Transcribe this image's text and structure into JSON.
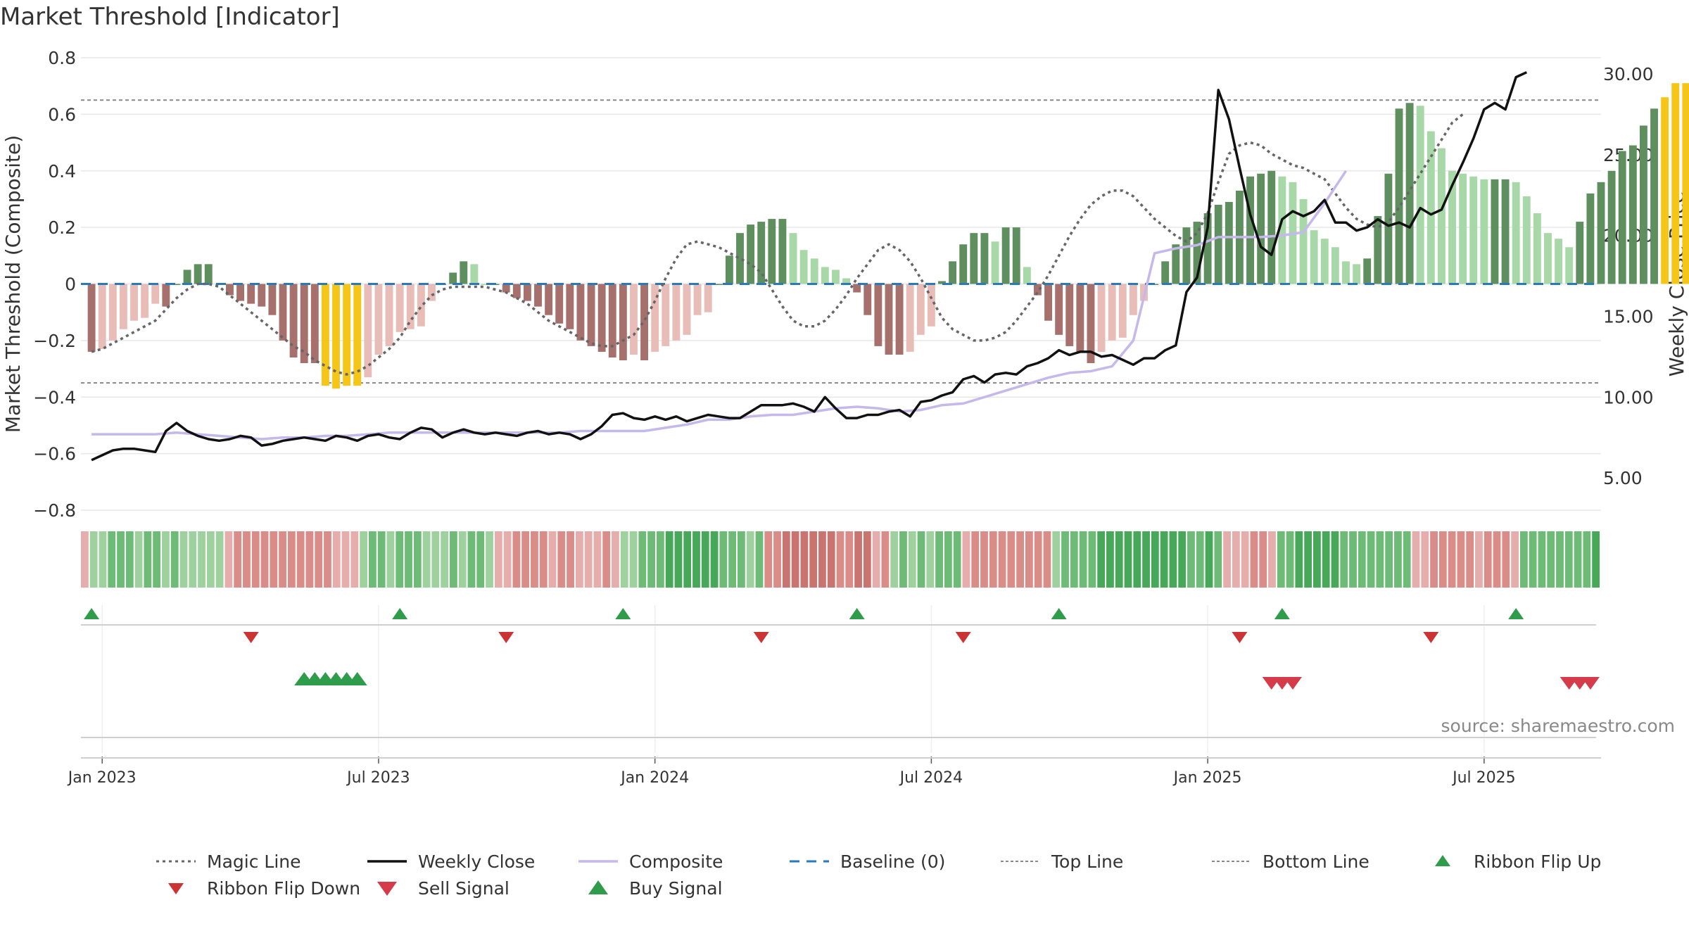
{
  "chart_data": {
    "type": "bar",
    "title": "Market Threshold [Indicator]",
    "ylabel_left": "Market Threshold (Composite)",
    "ylabel_right": "Weekly Close Price",
    "ylim_left": [
      -0.8,
      0.8
    ],
    "ylim_right": [
      3.0,
      31.0
    ],
    "yticks_left": [
      "0.8",
      "0.6",
      "0.4",
      "0.2",
      "0",
      "−0.2",
      "−0.4",
      "−0.6",
      "−0.8"
    ],
    "yticks_left_values": [
      0.8,
      0.6,
      0.4,
      0.2,
      0,
      -0.2,
      -0.4,
      -0.6,
      -0.8
    ],
    "yticks_right": [
      "30.00",
      "25.00",
      "20.00",
      "15.00",
      "10.00",
      "5.00"
    ],
    "yticks_right_values": [
      30,
      25,
      20,
      15,
      10,
      5
    ],
    "xticks": [
      "Jan 2023",
      "Jul 2023",
      "Jan 2024",
      "Jul 2024",
      "Jan 2025",
      "Jul 2025"
    ],
    "xticks_week": [
      1,
      27,
      53,
      79,
      105,
      131
    ],
    "x_start_week": -1,
    "x_end_week": 142,
    "week_note": "week 0 = first week of Jan 2023",
    "top_line": 0.65,
    "bottom_line": -0.35,
    "baseline": 0,
    "bars": [
      -0.24,
      -0.23,
      -0.2,
      -0.16,
      -0.13,
      -0.12,
      -0.07,
      -0.08,
      0,
      0.05,
      0.07,
      0.07,
      0,
      -0.04,
      -0.06,
      -0.07,
      -0.08,
      -0.11,
      -0.2,
      -0.26,
      -0.28,
      -0.28,
      -0.36,
      -0.37,
      -0.36,
      -0.36,
      -0.33,
      -0.25,
      -0.22,
      -0.17,
      -0.16,
      -0.15,
      -0.06,
      0,
      0.04,
      0.08,
      0.07,
      0,
      0,
      -0.03,
      -0.05,
      -0.06,
      -0.08,
      -0.11,
      -0.14,
      -0.16,
      -0.2,
      -0.22,
      -0.24,
      -0.26,
      -0.27,
      -0.25,
      -0.27,
      -0.24,
      -0.22,
      -0.2,
      -0.18,
      -0.11,
      -0.1,
      0,
      0.1,
      0.18,
      0.21,
      0.22,
      0.23,
      0.23,
      0.18,
      0.12,
      0.09,
      0.06,
      0.05,
      0.02,
      -0.03,
      -0.11,
      -0.22,
      -0.25,
      -0.25,
      -0.24,
      -0.18,
      -0.15,
      0.01,
      0.08,
      0.14,
      0.18,
      0.18,
      0.15,
      0.2,
      0.2,
      0.06,
      -0.04,
      -0.13,
      -0.18,
      -0.22,
      -0.24,
      -0.28,
      -0.24,
      -0.2,
      -0.19,
      -0.11,
      -0.06,
      0,
      0.08,
      0.14,
      0.2,
      0.22,
      0.25,
      0.28,
      0.29,
      0.33,
      0.38,
      0.39,
      0.4,
      0.38,
      0.36,
      0.3,
      0.19,
      0.16,
      0.13,
      0.08,
      0.07,
      0.09,
      0.24,
      0.39,
      0.62,
      0.64,
      0.63,
      0.54,
      0.48,
      0.4,
      0.39,
      0.38,
      0.37,
      0.37,
      0.37,
      0.36,
      0.31,
      0.25,
      0.18,
      0.16,
      0.13,
      0.22,
      0.32,
      0.36,
      0.4,
      0.47,
      0.49,
      0.56,
      0.62,
      0.66,
      0.71,
      0.71
    ],
    "magic_line": [
      -0.24,
      -0.23,
      -0.21,
      -0.19,
      -0.17,
      -0.15,
      -0.13,
      -0.09,
      -0.05,
      -0.02,
      0.0,
      0.0,
      -0.01,
      -0.04,
      -0.07,
      -0.1,
      -0.13,
      -0.16,
      -0.19,
      -0.22,
      -0.24,
      -0.27,
      -0.29,
      -0.31,
      -0.32,
      -0.31,
      -0.29,
      -0.26,
      -0.23,
      -0.19,
      -0.13,
      -0.08,
      -0.04,
      -0.02,
      -0.01,
      -0.01,
      -0.01,
      -0.01,
      -0.02,
      -0.03,
      -0.05,
      -0.07,
      -0.1,
      -0.13,
      -0.15,
      -0.17,
      -0.19,
      -0.21,
      -0.22,
      -0.22,
      -0.2,
      -0.18,
      -0.13,
      -0.06,
      0.02,
      0.09,
      0.14,
      0.15,
      0.14,
      0.13,
      0.11,
      0.09,
      0.07,
      0.04,
      -0.02,
      -0.08,
      -0.13,
      -0.15,
      -0.15,
      -0.13,
      -0.09,
      -0.04,
      0.02,
      0.07,
      0.12,
      0.14,
      0.12,
      0.08,
      0.02,
      -0.05,
      -0.12,
      -0.16,
      -0.18,
      -0.2,
      -0.2,
      -0.19,
      -0.17,
      -0.13,
      -0.08,
      -0.03,
      0.03,
      0.1,
      0.17,
      0.23,
      0.28,
      0.31,
      0.33,
      0.33,
      0.31,
      0.27,
      0.23,
      0.2,
      0.17,
      0.15,
      0.18,
      0.25,
      0.36,
      0.46,
      0.49,
      0.5,
      0.49,
      0.46,
      0.44,
      0.42,
      0.41,
      0.39,
      0.37,
      0.32,
      0.27,
      0.23,
      0.21,
      0.2,
      0.22,
      0.27,
      0.33,
      0.39,
      0.45,
      0.51,
      0.57,
      0.6
    ],
    "magic_line_start_week": 0,
    "composite_week_step": 2,
    "composite": [
      7.7,
      7.7,
      7.7,
      7.7,
      7.8,
      7.7,
      7.6,
      7.5,
      7.4,
      7.5,
      7.5,
      7.6,
      7.6,
      7.7,
      7.8,
      7.8,
      7.8,
      7.8,
      7.8,
      7.8,
      7.8,
      7.8,
      7.8,
      7.9,
      7.9,
      7.9,
      7.9,
      8.1,
      8.3,
      8.6,
      8.6,
      8.8,
      8.9,
      8.9,
      9.1,
      9.3,
      9.4,
      9.3,
      9.1,
      9.2,
      9.5,
      9.6,
      10,
      10.4,
      10.8,
      11.2,
      11.5,
      11.6,
      11.9,
      13.5,
      18.9,
      19.2,
      19.4,
      19.9,
      19.9,
      19.9,
      20.0,
      20.2,
      22.0,
      24.0
    ],
    "close_week_step": 1,
    "weekly_close": [
      6.1,
      6.4,
      6.7,
      6.8,
      6.8,
      6.7,
      6.6,
      7.9,
      8.4,
      7.9,
      7.6,
      7.4,
      7.3,
      7.4,
      7.6,
      7.5,
      7.0,
      7.1,
      7.3,
      7.4,
      7.5,
      7.4,
      7.3,
      7.6,
      7.5,
      7.3,
      7.6,
      7.7,
      7.5,
      7.4,
      7.8,
      8.1,
      8.0,
      7.5,
      7.8,
      8.0,
      7.8,
      7.7,
      7.8,
      7.7,
      7.6,
      7.8,
      7.9,
      7.7,
      7.8,
      7.7,
      7.4,
      7.7,
      8.2,
      8.9,
      9.0,
      8.7,
      8.6,
      8.8,
      8.6,
      8.8,
      8.5,
      8.7,
      8.9,
      8.8,
      8.7,
      8.7,
      9.1,
      9.5,
      9.5,
      9.5,
      9.6,
      9.4,
      9.1,
      10.0,
      9.3,
      8.7,
      8.7,
      8.9,
      8.9,
      9.1,
      9.2,
      8.8,
      9.7,
      9.8,
      10.1,
      10.3,
      11.1,
      11.3,
      10.9,
      11.4,
      11.5,
      11.4,
      11.9,
      12.1,
      12.4,
      12.9,
      12.6,
      12.8,
      12.8,
      12.5,
      12.6,
      12.3,
      12.0,
      12.4,
      12.4,
      12.9,
      13.2,
      16.5,
      17.4,
      20.5,
      29.0,
      27.2,
      24.2,
      21.3,
      19.3,
      18.8,
      21.0,
      21.5,
      21.2,
      21.5,
      22.2,
      20.8,
      20.8,
      20.3,
      20.5,
      21.0,
      20.6,
      20.8,
      20.5,
      21.7,
      21.3,
      21.6,
      23.1,
      24.5,
      26.0,
      27.8,
      28.2,
      27.8,
      29.8,
      30.1
    ],
    "ribbon_levels": [
      -1,
      1,
      1,
      2,
      2,
      2,
      1,
      2,
      2,
      1,
      2,
      1,
      1,
      1,
      1,
      1,
      -1,
      -2,
      -2,
      -2,
      -2,
      -2,
      -2,
      -2,
      -2,
      -2,
      -2,
      -2,
      -1,
      -1,
      -1,
      1,
      2,
      2,
      1,
      2,
      2,
      2,
      1,
      1,
      1,
      2,
      1,
      2,
      2,
      1,
      -1,
      -1,
      -2,
      -2,
      -2,
      -2,
      -1,
      -2,
      -2,
      -1,
      -1,
      -1,
      -2,
      -1,
      1,
      1,
      2,
      2,
      2,
      3,
      3,
      3,
      3,
      3,
      3,
      2,
      2,
      2,
      1,
      2,
      -2,
      -2,
      -3,
      -3,
      -3,
      -3,
      -3,
      -3,
      -2,
      -2,
      -3,
      -3,
      -1,
      -2,
      1,
      2,
      1,
      2,
      1,
      2,
      2,
      2,
      -1,
      -2,
      -2,
      -2,
      -2,
      -2,
      -2,
      -2,
      -2,
      -2,
      1,
      2,
      2,
      2,
      2,
      3,
      3,
      3,
      3,
      3,
      3,
      3,
      3,
      3,
      3,
      2,
      2,
      3,
      2,
      -1,
      -1,
      -1,
      -2,
      -2,
      -1,
      2,
      2,
      3,
      3,
      3,
      3,
      3,
      2,
      2,
      2,
      2,
      2,
      2,
      2,
      2,
      -1,
      -1,
      -2,
      -2,
      -2,
      -2,
      -2,
      -1,
      -2,
      -2,
      -2,
      -1,
      2,
      2,
      2,
      2,
      2,
      2,
      2,
      2,
      3
    ],
    "ribbon_flip_up_weeks": [
      0,
      29,
      50,
      72,
      91,
      112,
      134
    ],
    "ribbon_flip_down_weeks": [
      15,
      39,
      63,
      82,
      108,
      126
    ],
    "buy_signal_weeks": [
      20,
      21,
      22,
      23,
      24,
      25
    ],
    "sell_signal_weeks": [
      111,
      112,
      113,
      139,
      140,
      141
    ],
    "legend": [
      {
        "label": "Magic Line",
        "style": "dotted"
      },
      {
        "label": "Weekly Close",
        "style": "solid-black"
      },
      {
        "label": "Composite",
        "style": "solid-lavender"
      },
      {
        "label": "Baseline (0)",
        "style": "dashed-blue"
      },
      {
        "label": "Top Line",
        "style": "dotted-grey"
      },
      {
        "label": "Bottom Line",
        "style": "dotted-grey"
      },
      {
        "label": "Ribbon Flip Up",
        "style": "tri-up-green"
      },
      {
        "label": "Ribbon Flip Down",
        "style": "tri-down-red"
      },
      {
        "label": "Sell Signal",
        "style": "tri-down-crimson"
      },
      {
        "label": "Buy Signal",
        "style": "tri-up-green-large"
      }
    ],
    "source": "source: sharemaestro.com",
    "colors": {
      "bar_pos_strong": "#5f8f5f",
      "bar_pos_weak": "#a8d8a8",
      "bar_neg_strong": "#a6706c",
      "bar_neg_weak": "#e8bdb8",
      "bar_extreme": "#f5c518",
      "weekly_close": "#111111",
      "composite": "#c5b8ea",
      "magic_line": "#666666",
      "baseline": "#2a7ab8",
      "threshold": "#888888",
      "flip_up": "#2e9c4a",
      "flip_down": "#cc3333",
      "sell": "#d63b4a",
      "buy": "#2e9c4a"
    }
  }
}
